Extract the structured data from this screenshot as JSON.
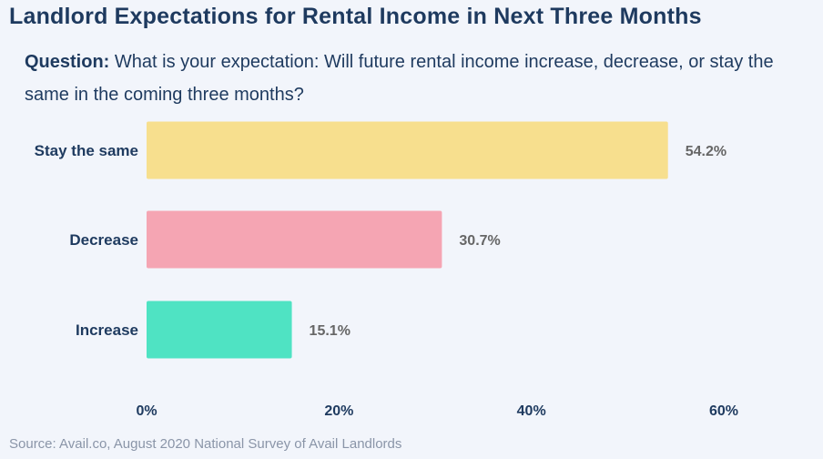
{
  "title": "Landlord Expectations for Rental Income in Next Three Months",
  "question": {
    "label": "Question:",
    "text": "What is your expectation: Will future rental income increase, decrease, or stay the same in the coming three months?"
  },
  "source": "Source: Avail.co, August 2020 National Survey of Avail Landlords",
  "chart_data": {
    "type": "bar",
    "orientation": "horizontal",
    "categories": [
      "Stay the same",
      "Decrease",
      "Increase"
    ],
    "values": [
      54.2,
      30.7,
      15.1
    ],
    "value_labels": [
      "54.2%",
      "30.7%",
      "15.1%"
    ],
    "colors": [
      "#f7df8e",
      "#f5a5b3",
      "#4fe3c3"
    ],
    "xlim": [
      0,
      60
    ],
    "xticks": [
      0,
      20,
      40,
      60
    ],
    "xtick_labels": [
      "0%",
      "20%",
      "40%",
      "60%"
    ],
    "grid": false,
    "legend": "none"
  },
  "colors": {
    "title": "#1e3a5f",
    "category_label": "#1e3a5f",
    "value_label": "#666666",
    "tick_label": "#1e3a5f",
    "background": "#f2f5fb"
  }
}
